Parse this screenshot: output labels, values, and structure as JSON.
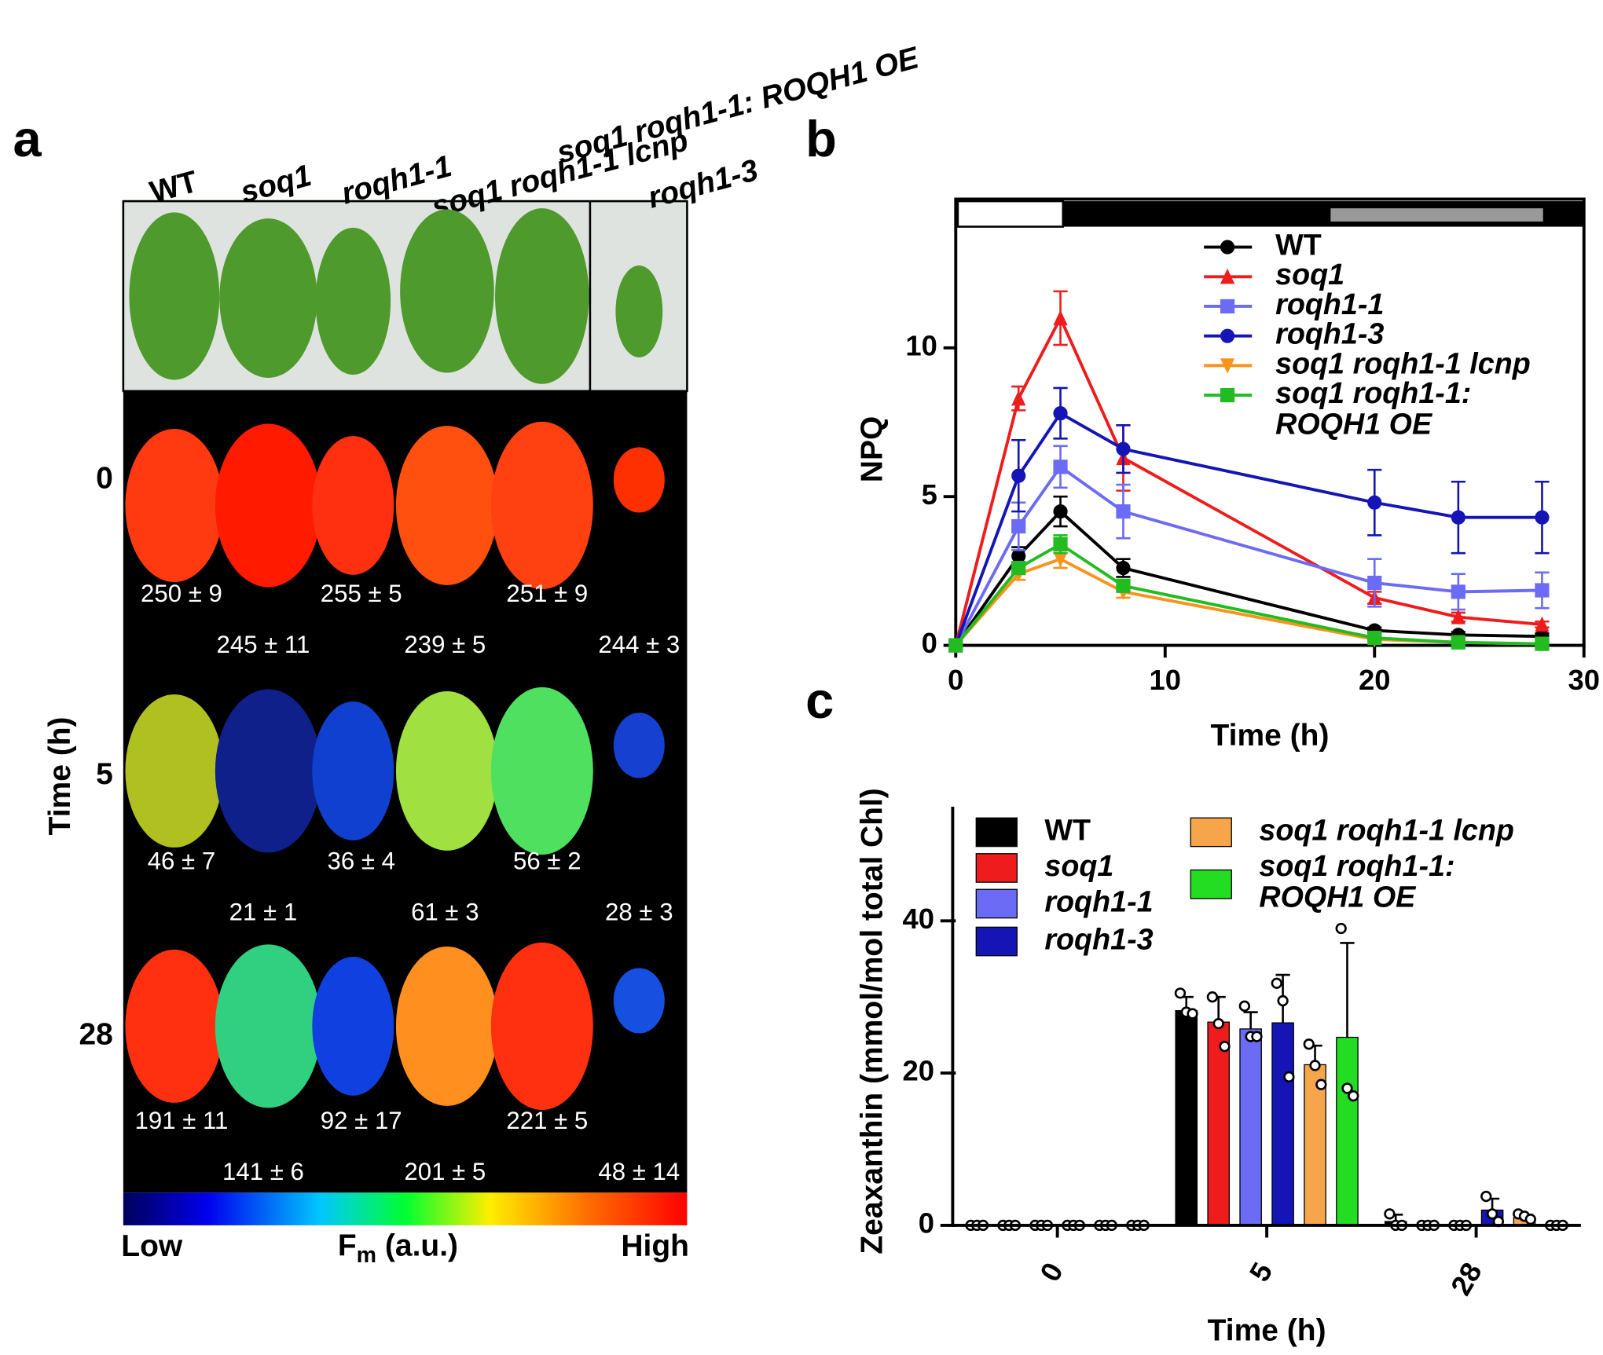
{
  "panel_labels": [
    "a",
    "b",
    "c"
  ],
  "panel_a": {
    "genotypes": [
      "WT",
      "soq1",
      "roqh1-1",
      "soq1 roqh1-1 lcnp",
      "soq1 roqh1-1: ROQH1 OE",
      "roqh1-3"
    ],
    "time_label": "Time (h)",
    "rows": [
      {
        "time": "0",
        "fm": [
          "250 ± 9",
          "245 ± 11",
          "255 ± 5",
          "239 ± 5",
          "251 ± 9",
          "244 ± 3"
        ]
      },
      {
        "time": "5",
        "fm": [
          "46 ± 7",
          "21 ± 1",
          "36 ± 4",
          "61 ± 3",
          "56 ± 2",
          "28 ± 3"
        ]
      },
      {
        "time": "28",
        "fm": [
          "191 ± 11",
          "141 ± 6",
          "92 ± 17",
          "201 ± 5",
          "221 ± 5",
          "48 ± 14"
        ]
      }
    ],
    "colorbar": {
      "low": "Low",
      "high": "High",
      "label_main": "F",
      "label_sub": "m",
      "label_rest": " (a.u.)"
    }
  },
  "chart_data": [
    {
      "type": "line",
      "xlabel": "Time (h)",
      "ylabel": "NPQ",
      "x": [
        0,
        3,
        5,
        8,
        20,
        24,
        28
      ],
      "xlim": [
        0,
        30
      ],
      "xticks": [
        0,
        10,
        20,
        30
      ],
      "ylim": [
        0,
        15
      ],
      "yticks": [
        0,
        5,
        10
      ],
      "series": [
        {
          "name": "WT",
          "color": "#000000",
          "marker": "circle",
          "values": [
            0,
            3.0,
            4.5,
            2.6,
            0.5,
            0.35,
            0.3
          ],
          "errors": [
            0,
            0.3,
            0.5,
            0.3,
            0.1,
            0.1,
            0.1
          ]
        },
        {
          "name": "soq1",
          "color": "#ee1c1c",
          "marker": "triangle",
          "values": [
            0,
            8.3,
            11.0,
            6.3,
            1.6,
            0.95,
            0.7
          ],
          "errors": [
            0,
            0.4,
            0.9,
            1.1,
            0.2,
            0.15,
            0.1
          ]
        },
        {
          "name": "roqh1-1",
          "color": "#6b6bf5",
          "marker": "square",
          "values": [
            0,
            4.0,
            6.0,
            4.5,
            2.1,
            1.8,
            1.85
          ],
          "errors": [
            0,
            0.8,
            0.7,
            0.9,
            0.8,
            0.6,
            0.6
          ]
        },
        {
          "name": "roqh1-3",
          "color": "#1515b5",
          "marker": "circle",
          "values": [
            0,
            5.7,
            7.8,
            6.6,
            4.8,
            4.3,
            4.3
          ],
          "errors": [
            0,
            1.2,
            0.85,
            0.8,
            1.1,
            1.2,
            1.2
          ]
        },
        {
          "name": "soq1 roqh1-1 lcnp",
          "color": "#f7941d",
          "marker": "triangle-down",
          "values": [
            0,
            2.4,
            2.9,
            1.8,
            0.2,
            0.1,
            0.05
          ],
          "errors": [
            0,
            0.2,
            0.3,
            0.2,
            0.05,
            0.05,
            0.05
          ]
        },
        {
          "name": "soq1 roqh1-1: ROQH1 OE",
          "color": "#22bb22",
          "marker": "square",
          "values": [
            0,
            2.6,
            3.4,
            2.0,
            0.25,
            0.1,
            0.05
          ],
          "errors": [
            0,
            0.2,
            0.3,
            0.2,
            0.05,
            0.05,
            0.05
          ]
        }
      ]
    },
    {
      "type": "bar",
      "xlabel": "Time (h)",
      "ylabel": "Zeaxanthin (mmol/mol total Chl)",
      "categories": [
        "0",
        "5",
        "28"
      ],
      "ylim": [
        0,
        55
      ],
      "yticks": [
        0,
        20,
        40
      ],
      "series": [
        {
          "name": "WT",
          "color": "#000000",
          "values": [
            0,
            28.2,
            0.5
          ],
          "errors": [
            0,
            1.8,
            0.9
          ],
          "replicates": [
            [
              0,
              0,
              0
            ],
            [
              30.5,
              28,
              27.8
            ],
            [
              1.5,
              0,
              0
            ]
          ]
        },
        {
          "name": "soq1",
          "color": "#ee1c1c",
          "values": [
            0,
            26.7,
            0
          ],
          "errors": [
            0,
            3.3,
            0
          ],
          "replicates": [
            [
              0,
              0,
              0
            ],
            [
              30,
              26.5,
              23.5
            ],
            [
              0,
              0,
              0
            ]
          ]
        },
        {
          "name": "roqh1-1",
          "color": "#6b6bf5",
          "values": [
            0,
            25.8,
            0
          ],
          "errors": [
            0,
            2.2,
            0
          ],
          "replicates": [
            [
              0,
              0,
              0
            ],
            [
              28.8,
              24.8,
              24.8
            ],
            [
              0,
              0,
              0
            ]
          ]
        },
        {
          "name": "roqh1-3",
          "color": "#1515b5",
          "values": [
            0,
            26.6,
            2.0
          ],
          "errors": [
            0,
            6.3,
            1.5
          ],
          "replicates": [
            [
              0,
              0,
              0
            ],
            [
              31.8,
              29.5,
              19.5
            ],
            [
              3.8,
              1.5,
              0.5
            ]
          ]
        },
        {
          "name": "soq1 roqh1-1 lcnp",
          "color": "#f7a54a",
          "values": [
            0,
            21.1,
            1.0
          ],
          "errors": [
            0,
            2.5,
            0.4
          ],
          "replicates": [
            [
              0,
              0,
              0
            ],
            [
              23.8,
              21,
              18.5
            ],
            [
              1.5,
              1.2,
              0.8
            ]
          ]
        },
        {
          "name": "soq1 roqh1-1: ROQH1 OE",
          "color": "#22dd22",
          "values": [
            0,
            24.7,
            0
          ],
          "errors": [
            0,
            12.4,
            0
          ],
          "replicates": [
            [
              0,
              0,
              0
            ],
            [
              39,
              18,
              17
            ],
            [
              0,
              0,
              0
            ]
          ]
        }
      ]
    }
  ]
}
